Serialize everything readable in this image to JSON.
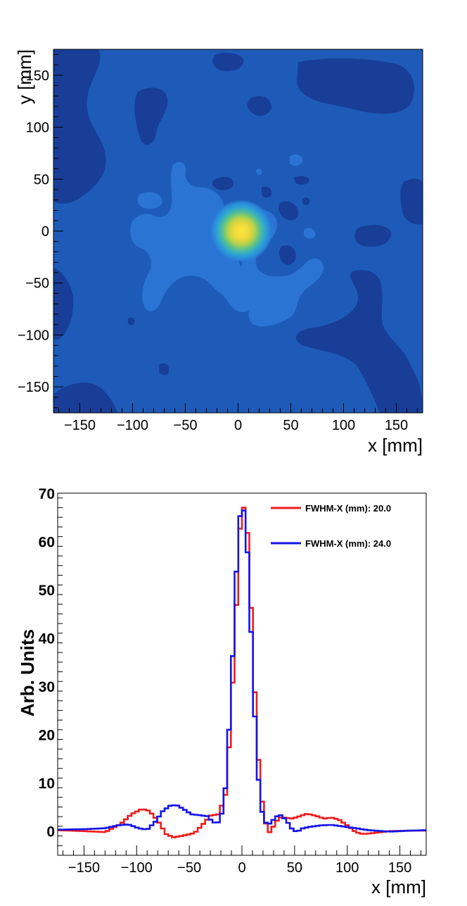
{
  "chart_data": [
    {
      "type": "heatmap",
      "xlabel": "x [mm]",
      "ylabel": "y [mm]",
      "xlim": [
        -175,
        175
      ],
      "ylim": [
        -175,
        175
      ],
      "x_ticks": [
        "−150",
        "−100",
        "−50",
        "0",
        "50",
        "100",
        "150"
      ],
      "y_ticks": [
        "−150",
        "−100",
        "−50",
        "0",
        "50",
        "100",
        "150"
      ],
      "x_tick_values": [
        -150,
        -100,
        -50,
        0,
        50,
        100,
        150
      ],
      "y_tick_values": [
        -150,
        -100,
        -50,
        0,
        50,
        100,
        150
      ],
      "peak": {
        "x": 3,
        "y": 0,
        "fwhm": 20
      },
      "colors": {
        "background": "#1e5bb8",
        "low": "#183e98",
        "mid": "#2a75d4",
        "peak": "#f5e13a"
      }
    },
    {
      "type": "line",
      "xlabel": "x [mm]",
      "ylabel": "Arb. Units",
      "xlim": [
        -175,
        175
      ],
      "ylim": [
        -5,
        70
      ],
      "x_ticks": [
        "−150",
        "−100",
        "−50",
        "0",
        "50",
        "100",
        "150"
      ],
      "y_ticks": [
        "0",
        "10",
        "20",
        "30",
        "40",
        "50",
        "60",
        "70"
      ],
      "x_tick_values": [
        -150,
        -100,
        -50,
        0,
        50,
        100,
        150
      ],
      "y_tick_values": [
        0,
        10,
        20,
        30,
        40,
        50,
        60,
        70
      ],
      "legend_position": "top-right",
      "series": [
        {
          "name": "FWHM-X (mm): 20.0",
          "color": "#ee1c1c",
          "x": [
            -175,
            -150,
            -130,
            -115,
            -105,
            -95,
            -88,
            -80,
            -72,
            -65,
            -55,
            -45,
            -38,
            -30,
            -22,
            -15,
            -10,
            -5,
            -2,
            0,
            3,
            6,
            10,
            14,
            18,
            22,
            26,
            30,
            35,
            40,
            48,
            55,
            62,
            70,
            78,
            85,
            92,
            100,
            108,
            115,
            125,
            140,
            160,
            175
          ],
          "y": [
            0.2,
            0.0,
            -0.2,
            1.5,
            3.5,
            4.6,
            4.2,
            2.2,
            -0.6,
            -1.3,
            -0.9,
            -0.4,
            1.2,
            3.2,
            3.5,
            8,
            25,
            48,
            62,
            67,
            67,
            60,
            40,
            20,
            8,
            2,
            -0.3,
            1.0,
            2.8,
            2.8,
            2.6,
            3.1,
            3.6,
            3.2,
            2.6,
            2.8,
            2.4,
            1.2,
            -0.2,
            -0.6,
            -0.4,
            0.0,
            0.1,
            0.1
          ]
        },
        {
          "name": "FWHM-X (mm): 24.0",
          "color": "#1414e8",
          "x": [
            -175,
            -150,
            -130,
            -118,
            -108,
            -98,
            -90,
            -82,
            -75,
            -68,
            -62,
            -55,
            -48,
            -40,
            -33,
            -28,
            -24,
            -20,
            -15,
            -10,
            -5,
            -2,
            0,
            3,
            6,
            10,
            14,
            18,
            22,
            27,
            32,
            37,
            42,
            47,
            52,
            58,
            65,
            75,
            85,
            95,
            105,
            120,
            140,
            160,
            175
          ],
          "y": [
            0.3,
            0.4,
            0.6,
            1.2,
            1.4,
            0.6,
            0.3,
            2.0,
            4.2,
            5.3,
            5.4,
            4.5,
            3.5,
            3.3,
            3.1,
            2.0,
            1.5,
            2.5,
            10,
            30,
            55,
            65,
            67,
            66,
            55,
            35,
            15,
            5,
            1.8,
            1.5,
            3.0,
            3.3,
            2.3,
            0.6,
            -0.2,
            0.6,
            0.9,
            1.2,
            1.3,
            1.0,
            0.7,
            0.2,
            -0.1,
            0.1,
            0.2
          ]
        }
      ]
    }
  ]
}
